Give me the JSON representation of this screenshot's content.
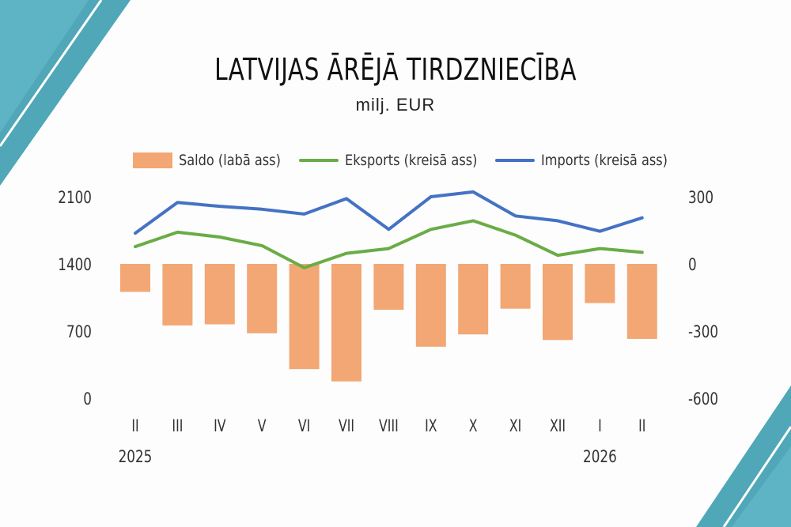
{
  "colors": {
    "saldo": "#f2a774",
    "eksports": "#6aac46",
    "imports": "#4472c4",
    "accent": "#4fa7b8"
  },
  "header": {
    "title": "LATVIJAS ĀRĒJĀ TIRDZNIECĪBA",
    "subtitle": "milj. EUR"
  },
  "legend": {
    "saldo": "Saldo (labā ass)",
    "eksports": "Eksports (kreisā ass)",
    "imports": "Imports (kreisā ass)"
  },
  "chart_data": {
    "type": "bar",
    "title": "LATVIJAS ĀRĒJĀ TIRDZNIECĪBA",
    "subtitle": "milj. EUR",
    "categories": [
      "II",
      "III",
      "IV",
      "V",
      "VI",
      "VII",
      "VIII",
      "IX",
      "X",
      "XI",
      "XII",
      "I",
      "II"
    ],
    "year_labels": [
      {
        "category_index": 0,
        "label": "2025"
      },
      {
        "category_index": 11,
        "label": "2026"
      }
    ],
    "left_axis": {
      "ylim": [
        0,
        2100
      ],
      "ticks": [
        0,
        700,
        1400,
        2100
      ]
    },
    "right_axis": {
      "ylim": [
        -600,
        300
      ],
      "ticks": [
        -600,
        -300,
        0,
        300
      ]
    },
    "series": [
      {
        "name": "Saldo (labā ass)",
        "type": "bar",
        "axis": "right",
        "values": [
          -125,
          -275,
          -270,
          -310,
          -470,
          -525,
          -205,
          -370,
          -315,
          -200,
          -340,
          -175,
          -335
        ]
      },
      {
        "name": "Eksports (kreisā ass)",
        "type": "line",
        "axis": "left",
        "values": [
          1580,
          1730,
          1680,
          1590,
          1360,
          1510,
          1560,
          1760,
          1850,
          1700,
          1490,
          1560,
          1520
        ]
      },
      {
        "name": "Imports (kreisā ass)",
        "type": "line",
        "axis": "left",
        "values": [
          1720,
          2040,
          2000,
          1970,
          1920,
          2080,
          1760,
          2100,
          2150,
          1900,
          1850,
          1740,
          1880
        ]
      }
    ]
  }
}
